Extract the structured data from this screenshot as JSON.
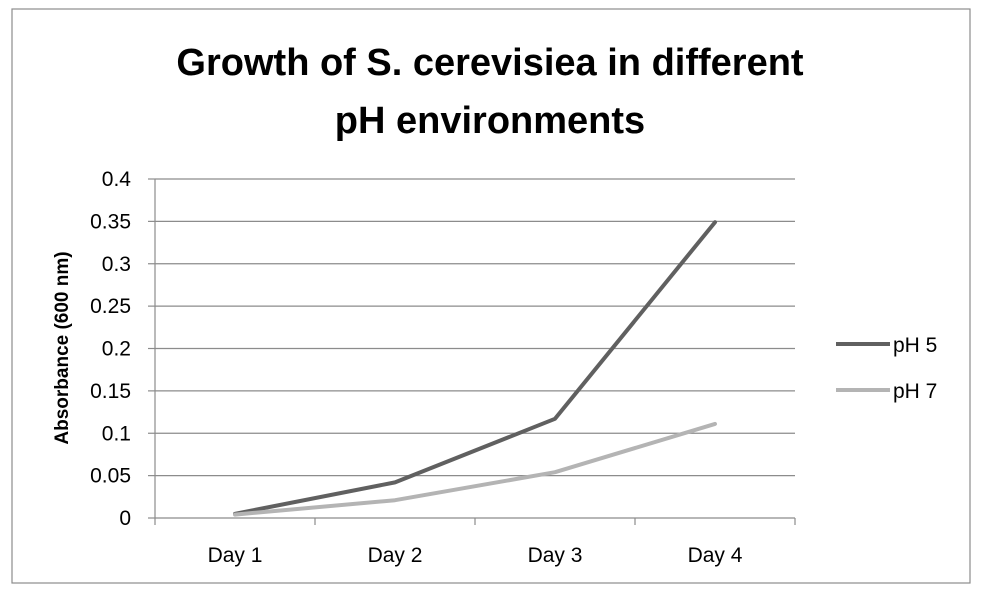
{
  "chart_data": {
    "type": "line",
    "title_lines": [
      "Growth of S. cerevisiea in different",
      "pH environments"
    ],
    "xlabel": "",
    "ylabel": "Absorbance (600 nm)",
    "categories": [
      "Day 1",
      "Day 2",
      "Day 3",
      "Day 4"
    ],
    "y_ticks": [
      "0",
      "0.05",
      "0.1",
      "0.15",
      "0.2",
      "0.25",
      "0.3",
      "0.35",
      "0.4"
    ],
    "ylim": [
      0,
      0.4
    ],
    "grid": true,
    "legend_position": "right",
    "series": [
      {
        "name": "pH 5",
        "color": "#606060",
        "values": [
          0.005,
          0.042,
          0.117,
          0.349
        ]
      },
      {
        "name": "pH 7",
        "color": "#b4b4b4",
        "values": [
          0.004,
          0.021,
          0.054,
          0.111
        ]
      }
    ]
  }
}
